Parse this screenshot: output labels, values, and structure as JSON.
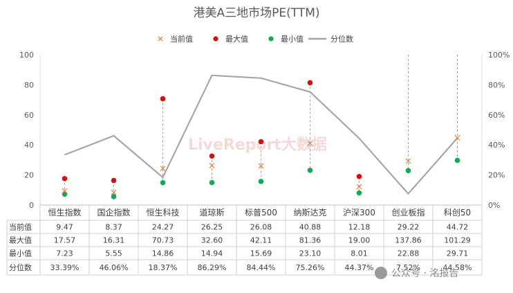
{
  "chart_data": {
    "type": "line",
    "title": "港美A三地市场PE(TTM)",
    "categories": [
      "恒生指数",
      "国企指数",
      "恒生科技",
      "道琼斯",
      "标普500",
      "纳斯达克",
      "沪深300",
      "创业板指",
      "科创50"
    ],
    "legend": [
      "当前值",
      "最大值",
      "最小值",
      "分位数"
    ],
    "series": [
      {
        "name": "当前值",
        "values": [
          9.47,
          8.37,
          24.27,
          26.25,
          26.08,
          40.88,
          12.18,
          29.22,
          44.72
        ],
        "display": [
          "9.47",
          "8.37",
          "24.27",
          "26.25",
          "26.08",
          "40.88",
          "12.18",
          "29.22",
          "44.72"
        ]
      },
      {
        "name": "最大值",
        "values": [
          17.57,
          16.31,
          70.73,
          32.6,
          42.11,
          81.36,
          19.0,
          137.86,
          101.29
        ],
        "display": [
          "17.57",
          "16.31",
          "70.73",
          "32.60",
          "42.11",
          "81.36",
          "19.00",
          "137.86",
          "101.29"
        ]
      },
      {
        "name": "最小值",
        "values": [
          7.23,
          5.55,
          14.86,
          14.94,
          15.69,
          23.1,
          8.01,
          22.88,
          29.71
        ],
        "display": [
          "7.23",
          "5.55",
          "14.86",
          "14.94",
          "15.69",
          "23.10",
          "8.01",
          "22.88",
          "29.71"
        ]
      },
      {
        "name": "分位数",
        "values": [
          33.39,
          46.06,
          18.37,
          86.29,
          84.44,
          75.26,
          44.37,
          7.52,
          44.58
        ],
        "display": [
          "33.39%",
          "46.06%",
          "18.37%",
          "86.29%",
          "84.44%",
          "75.26%",
          "44.37%",
          "7.52%",
          "44.58%"
        ]
      }
    ],
    "y_left": {
      "min": 0,
      "max": 100,
      "ticks": [
        "0",
        "20",
        "40",
        "60",
        "80",
        "100"
      ]
    },
    "y_right": {
      "min": 0,
      "max": 100,
      "ticks": [
        "0%",
        "20%",
        "40%",
        "60%",
        "80%",
        "100%"
      ]
    },
    "legend_position": "top",
    "grid": false
  },
  "colors": {
    "current": "#e0874a",
    "max": "#d40f0f",
    "min": "#13a853",
    "pct": "#a6a6a6"
  },
  "watermark": "LiveReport大数据",
  "source_badge": "公众号 · 洺报告"
}
